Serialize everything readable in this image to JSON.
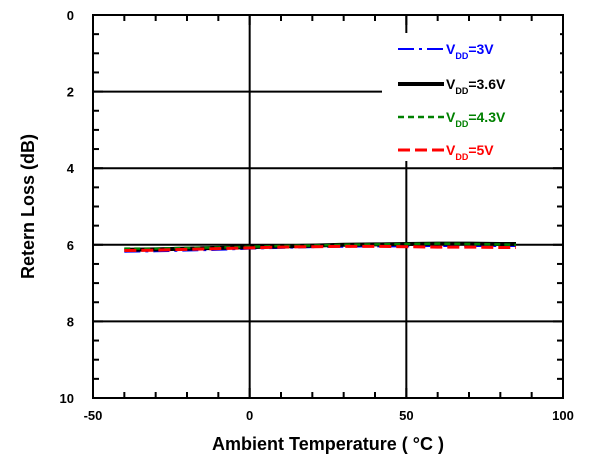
{
  "chart_data": {
    "type": "line",
    "title": "",
    "xlabel": "Ambient Temperature ( °C )",
    "ylabel": "Retern Loss (dB)",
    "xlim": [
      -50,
      100
    ],
    "ylim": [
      0,
      10
    ],
    "y_inverted": true,
    "x_ticks": [
      -50,
      0,
      50,
      100
    ],
    "y_ticks": [
      0,
      2,
      4,
      6,
      8,
      10
    ],
    "grid": true,
    "legend_position": "top-right",
    "series": [
      {
        "name": "VDD=3V",
        "label_main": "V",
        "label_sub": "DD",
        "label_tail": "=3V",
        "color": "#0000ff",
        "dash": "dash-dot",
        "width": 2,
        "x": [
          -40,
          -30,
          -20,
          -10,
          0,
          10,
          20,
          30,
          40,
          50,
          60,
          70,
          80,
          85
        ],
        "y": [
          6.18,
          6.17,
          6.15,
          6.13,
          6.1,
          6.08,
          6.06,
          6.05,
          6.04,
          6.04,
          6.03,
          6.03,
          6.03,
          6.03
        ]
      },
      {
        "name": "VDD=3.6V",
        "label_main": "V",
        "label_sub": "DD",
        "label_tail": "=3.6V",
        "color": "#000000",
        "dash": "solid",
        "width": 4,
        "x": [
          -40,
          -30,
          -20,
          -10,
          0,
          10,
          20,
          30,
          40,
          50,
          60,
          70,
          80,
          85
        ],
        "y": [
          6.13,
          6.12,
          6.1,
          6.08,
          6.06,
          6.04,
          6.02,
          6.0,
          5.99,
          5.98,
          5.97,
          5.97,
          5.98,
          5.98
        ]
      },
      {
        "name": "VDD=4.3V",
        "label_main": "V",
        "label_sub": "DD",
        "label_tail": "=4.3V",
        "color": "#008000",
        "dash": "dashed",
        "width": 2.5,
        "x": [
          -40,
          -30,
          -20,
          -10,
          0,
          10,
          20,
          30,
          40,
          50,
          60,
          70,
          80,
          85
        ],
        "y": [
          6.1,
          6.1,
          6.08,
          6.07,
          6.05,
          6.03,
          6.02,
          6.0,
          5.99,
          5.98,
          5.97,
          5.98,
          5.99,
          6.0
        ]
      },
      {
        "name": "VDD=5V",
        "label_main": "V",
        "label_sub": "DD",
        "label_tail": "=5V",
        "color": "#ff0000",
        "dash": "long-dash",
        "width": 3,
        "x": [
          -40,
          -30,
          -20,
          -10,
          0,
          10,
          20,
          30,
          40,
          50,
          60,
          70,
          80,
          85
        ],
        "y": [
          6.15,
          6.14,
          6.12,
          6.1,
          6.08,
          6.06,
          6.05,
          6.04,
          6.04,
          6.05,
          6.06,
          6.06,
          6.07,
          6.07
        ]
      }
    ]
  }
}
